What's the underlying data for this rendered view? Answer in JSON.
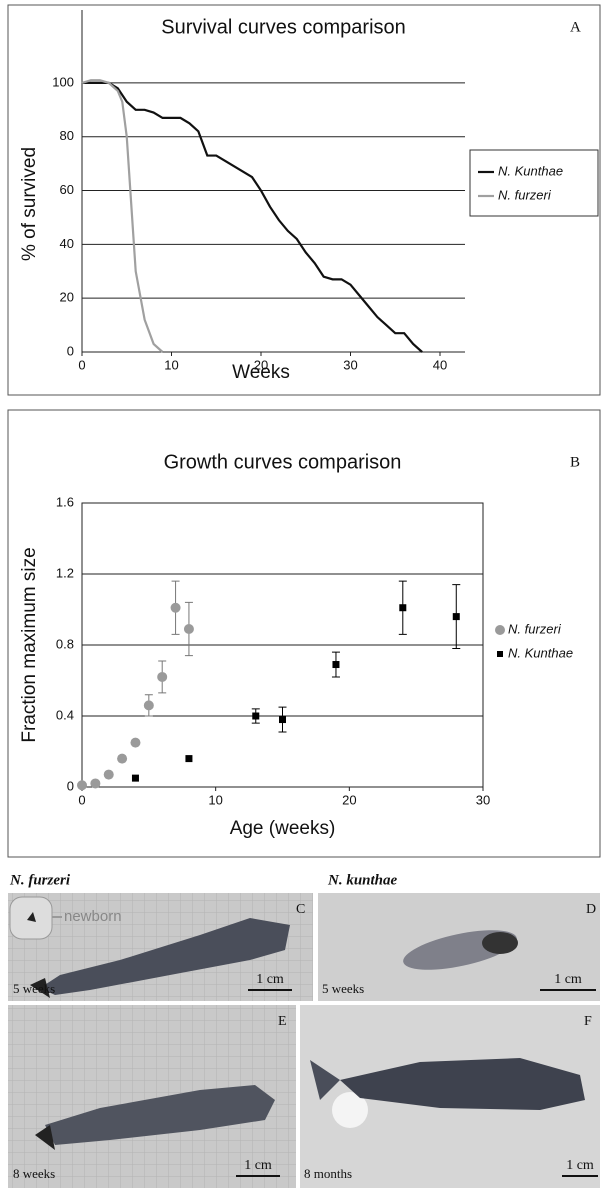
{
  "chart_data": [
    {
      "type": "line",
      "title": "Survival curves comparison",
      "panel": "A",
      "xlabel": "Weeks",
      "ylabel": "% of survived",
      "xlim": [
        0,
        40
      ],
      "xticks": [
        0,
        10,
        20,
        30,
        40
      ],
      "ylim": [
        0,
        110
      ],
      "yticks": [
        0,
        20,
        40,
        60,
        80,
        100
      ],
      "grid": true,
      "legend": "right",
      "series": [
        {
          "name": "N. Kunthae",
          "color": "#111111",
          "x": [
            0,
            1,
            2,
            3,
            4,
            5,
            6,
            7,
            8,
            9,
            10,
            11,
            12,
            13,
            14,
            15,
            16,
            17,
            18,
            19,
            20,
            21,
            22,
            23,
            24,
            25,
            26,
            27,
            28,
            29,
            30,
            31,
            32,
            33,
            34,
            35,
            36,
            37,
            38
          ],
          "values": [
            100,
            100,
            100,
            100,
            98,
            93,
            90,
            90,
            89,
            87,
            87,
            87,
            85,
            82,
            73,
            73,
            71,
            69,
            67,
            65,
            60,
            54,
            49,
            45,
            42,
            37,
            33,
            28,
            27,
            27,
            25,
            21,
            17,
            13,
            10,
            7,
            7,
            3,
            0
          ]
        },
        {
          "name": "N. furzeri",
          "color": "#a0a0a0",
          "x": [
            0,
            1,
            2,
            3,
            4,
            4.5,
            5,
            5.5,
            6,
            7,
            8,
            9
          ],
          "values": [
            100,
            101,
            101,
            100,
            97,
            93,
            80,
            55,
            30,
            12,
            3,
            0
          ]
        }
      ]
    },
    {
      "type": "scatter",
      "title": "Growth curves comparison",
      "panel": "B",
      "xlabel": "Age (weeks)",
      "ylabel": "Fraction maximum size",
      "xlim": [
        0,
        30
      ],
      "xticks": [
        0,
        10,
        20,
        30
      ],
      "ylim": [
        0,
        1.6
      ],
      "yticks": [
        0,
        0.4,
        0.8,
        1.2,
        1.6
      ],
      "grid": true,
      "legend": "right",
      "series": [
        {
          "name": "N. furzeri",
          "color": "#9a9a9a",
          "marker": "circle",
          "x": [
            0,
            1,
            2,
            3,
            4,
            5,
            6,
            7,
            8
          ],
          "values": [
            0.01,
            0.02,
            0.07,
            0.16,
            0.25,
            0.46,
            0.62,
            1.01,
            0.89
          ],
          "errors": [
            null,
            null,
            null,
            null,
            null,
            0.06,
            0.09,
            0.15,
            0.15
          ]
        },
        {
          "name": "N. Kunthae",
          "color": "#000000",
          "marker": "square",
          "x": [
            4,
            8,
            13,
            15,
            19,
            24,
            28
          ],
          "values": [
            0.05,
            0.16,
            0.4,
            0.38,
            0.69,
            1.01,
            0.96
          ],
          "errors": [
            null,
            null,
            0.04,
            0.07,
            0.07,
            0.15,
            0.18
          ]
        }
      ]
    }
  ],
  "photos": {
    "species_left": "N. furzeri",
    "species_right": "N. kunthae",
    "panels": [
      {
        "letter": "C",
        "age": "5 weeks",
        "scale": "1 cm",
        "inset": "newborn"
      },
      {
        "letter": "D",
        "age": "5 weeks",
        "scale": "1 cm"
      },
      {
        "letter": "E",
        "age": "8 weeks",
        "scale": "1 cm"
      },
      {
        "letter": "F",
        "age": "8 months",
        "scale": "1 cm"
      }
    ]
  }
}
